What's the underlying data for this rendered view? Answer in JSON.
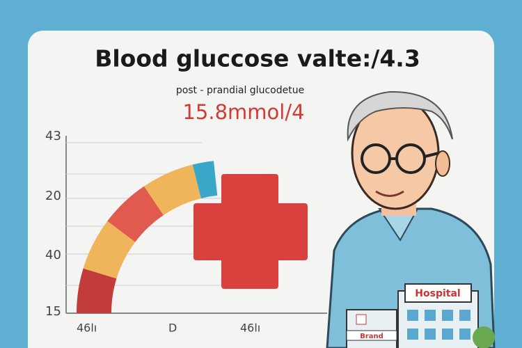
{
  "header": {
    "title": "Blood gluccose valte:/4.3",
    "subtitle": "post - prandial glucodetue",
    "reading": "15.8mmol/4"
  },
  "axis": {
    "labels": [
      "43",
      "20",
      "40",
      "15"
    ],
    "bottom_labels": [
      "46lı",
      "D",
      "46lı"
    ]
  },
  "signs": {
    "hospital": "Hospital",
    "brand": "Brand"
  }
}
